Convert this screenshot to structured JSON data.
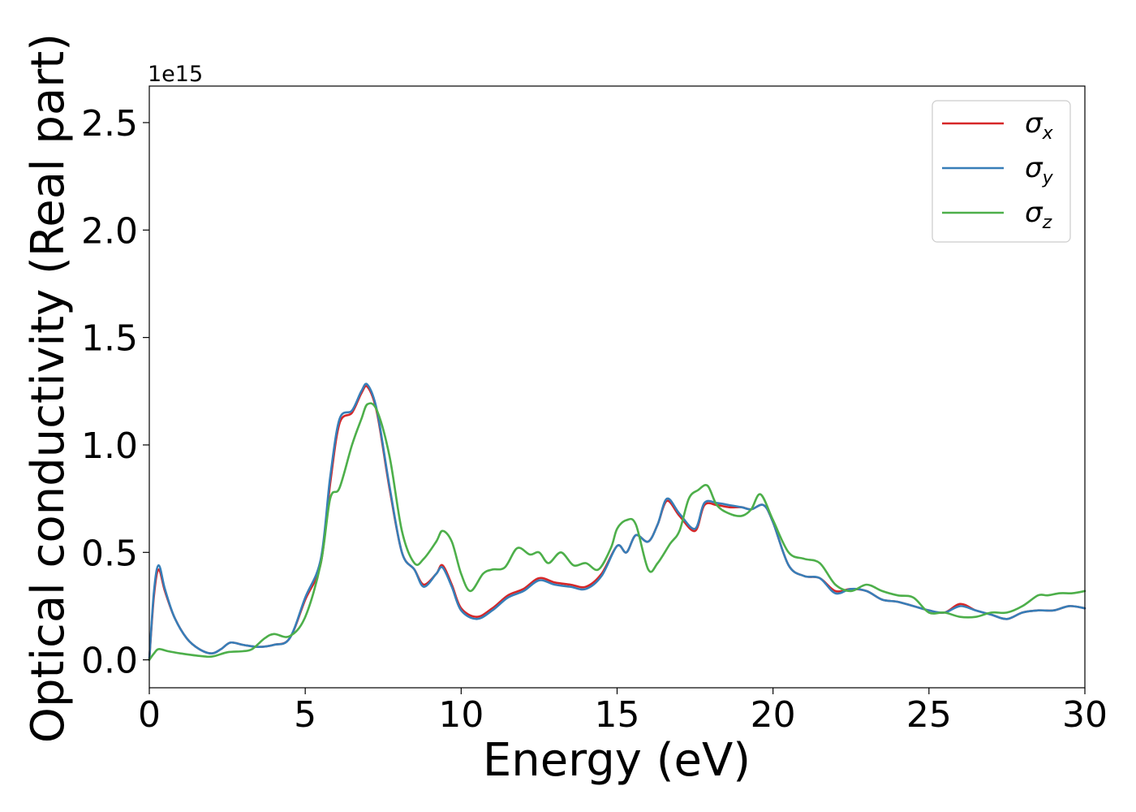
{
  "chart_data": {
    "type": "line",
    "title": "",
    "xlabel": "Energy (eV)",
    "ylabel": "Optical conductivity (Real part)",
    "y_offset_label": "1e15",
    "xlim": [
      0,
      30
    ],
    "ylim": [
      -0.13,
      2.67
    ],
    "x_ticks": [
      0,
      5,
      10,
      15,
      20,
      25,
      30
    ],
    "x_tick_labels": [
      "0",
      "5",
      "10",
      "15",
      "20",
      "25",
      "30"
    ],
    "y_ticks": [
      0.0,
      0.5,
      1.0,
      1.5,
      2.0,
      2.5
    ],
    "y_tick_labels": [
      "0.0",
      "0.5",
      "1.0",
      "1.5",
      "2.0",
      "2.5"
    ],
    "grid": false,
    "legend_position": "top-right",
    "series": [
      {
        "name": "σ",
        "subscript": "x",
        "color": "#d62728",
        "x": [
          0,
          0.15,
          0.3,
          0.5,
          0.8,
          1.2,
          1.6,
          2.0,
          2.3,
          2.6,
          3.0,
          3.5,
          4.0,
          4.5,
          5.0,
          5.5,
          5.8,
          6.1,
          6.5,
          6.8,
          7.0,
          7.3,
          7.7,
          8.1,
          8.5,
          8.8,
          9.2,
          9.4,
          9.7,
          10.0,
          10.5,
          11.0,
          11.5,
          12.0,
          12.5,
          13.0,
          13.5,
          14.0,
          14.5,
          15.0,
          15.3,
          15.6,
          16.0,
          16.3,
          16.6,
          17.0,
          17.5,
          17.8,
          18.2,
          18.6,
          19.0,
          19.3,
          19.7,
          20.0,
          20.5,
          21.0,
          21.5,
          22.0,
          22.5,
          23.0,
          23.5,
          24.0,
          24.5,
          25.0,
          25.5,
          26.0,
          26.5,
          27.0,
          27.5,
          28.0,
          28.5,
          29.0,
          29.5,
          30.0
        ],
        "y": [
          0.0,
          0.3,
          0.42,
          0.32,
          0.2,
          0.1,
          0.05,
          0.03,
          0.05,
          0.08,
          0.07,
          0.06,
          0.07,
          0.1,
          0.28,
          0.45,
          0.82,
          1.1,
          1.15,
          1.24,
          1.27,
          1.15,
          0.8,
          0.5,
          0.42,
          0.35,
          0.4,
          0.44,
          0.35,
          0.24,
          0.2,
          0.24,
          0.3,
          0.33,
          0.38,
          0.36,
          0.35,
          0.34,
          0.4,
          0.53,
          0.5,
          0.58,
          0.55,
          0.63,
          0.74,
          0.67,
          0.6,
          0.72,
          0.72,
          0.71,
          0.71,
          0.7,
          0.72,
          0.64,
          0.44,
          0.39,
          0.38,
          0.32,
          0.33,
          0.32,
          0.28,
          0.27,
          0.25,
          0.23,
          0.22,
          0.26,
          0.23,
          0.21,
          0.19,
          0.22,
          0.23,
          0.23,
          0.25,
          0.24
        ]
      },
      {
        "name": "σ",
        "subscript": "y",
        "color": "#377eb8",
        "x": [
          0,
          0.15,
          0.3,
          0.5,
          0.8,
          1.2,
          1.6,
          2.0,
          2.3,
          2.6,
          3.0,
          3.5,
          4.0,
          4.5,
          5.0,
          5.5,
          5.8,
          6.1,
          6.5,
          6.8,
          7.0,
          7.3,
          7.7,
          8.1,
          8.5,
          8.8,
          9.2,
          9.4,
          9.7,
          10.0,
          10.5,
          11.0,
          11.5,
          12.0,
          12.5,
          13.0,
          13.5,
          14.0,
          14.5,
          15.0,
          15.3,
          15.6,
          16.0,
          16.3,
          16.6,
          17.0,
          17.5,
          17.8,
          18.2,
          18.6,
          19.0,
          19.3,
          19.7,
          20.0,
          20.5,
          21.0,
          21.5,
          22.0,
          22.5,
          23.0,
          23.5,
          24.0,
          24.5,
          25.0,
          25.5,
          26.0,
          26.5,
          27.0,
          27.5,
          28.0,
          28.5,
          29.0,
          29.5,
          30.0
        ],
        "y": [
          0.0,
          0.32,
          0.44,
          0.33,
          0.2,
          0.1,
          0.05,
          0.03,
          0.05,
          0.08,
          0.07,
          0.06,
          0.07,
          0.1,
          0.29,
          0.47,
          0.85,
          1.12,
          1.16,
          1.25,
          1.28,
          1.16,
          0.81,
          0.5,
          0.42,
          0.34,
          0.4,
          0.43,
          0.34,
          0.23,
          0.19,
          0.23,
          0.29,
          0.32,
          0.37,
          0.35,
          0.34,
          0.33,
          0.39,
          0.53,
          0.5,
          0.58,
          0.55,
          0.63,
          0.75,
          0.68,
          0.61,
          0.73,
          0.73,
          0.72,
          0.71,
          0.7,
          0.72,
          0.64,
          0.44,
          0.39,
          0.38,
          0.31,
          0.33,
          0.32,
          0.28,
          0.27,
          0.25,
          0.23,
          0.22,
          0.25,
          0.23,
          0.21,
          0.19,
          0.22,
          0.23,
          0.23,
          0.25,
          0.24
        ]
      },
      {
        "name": "σ",
        "subscript": "z",
        "color": "#4daf4a",
        "x": [
          0,
          0.15,
          0.3,
          0.6,
          1.0,
          1.5,
          2.0,
          2.5,
          3.0,
          3.3,
          3.7,
          4.0,
          4.5,
          5.0,
          5.5,
          5.8,
          6.1,
          6.5,
          6.8,
          7.0,
          7.3,
          7.7,
          8.1,
          8.5,
          8.8,
          9.2,
          9.4,
          9.7,
          10.0,
          10.3,
          10.7,
          11.0,
          11.4,
          11.8,
          12.2,
          12.5,
          12.8,
          13.2,
          13.6,
          14.0,
          14.4,
          14.8,
          15.0,
          15.3,
          15.6,
          16.0,
          16.3,
          16.7,
          17.0,
          17.3,
          17.6,
          17.9,
          18.2,
          18.6,
          19.0,
          19.3,
          19.6,
          20.0,
          20.5,
          21.0,
          21.5,
          22.0,
          22.5,
          23.0,
          23.5,
          24.0,
          24.5,
          25.0,
          25.5,
          26.0,
          26.5,
          27.0,
          27.5,
          28.0,
          28.5,
          28.8,
          29.2,
          29.6,
          30.0
        ],
        "y": [
          0.0,
          0.03,
          0.05,
          0.04,
          0.03,
          0.02,
          0.015,
          0.035,
          0.04,
          0.05,
          0.1,
          0.12,
          0.11,
          0.2,
          0.45,
          0.75,
          0.8,
          1.0,
          1.12,
          1.19,
          1.16,
          0.95,
          0.6,
          0.45,
          0.47,
          0.55,
          0.6,
          0.55,
          0.4,
          0.32,
          0.4,
          0.42,
          0.43,
          0.52,
          0.49,
          0.5,
          0.45,
          0.5,
          0.44,
          0.45,
          0.42,
          0.52,
          0.61,
          0.65,
          0.63,
          0.42,
          0.45,
          0.54,
          0.6,
          0.75,
          0.79,
          0.81,
          0.72,
          0.68,
          0.67,
          0.7,
          0.77,
          0.65,
          0.5,
          0.47,
          0.45,
          0.35,
          0.32,
          0.35,
          0.32,
          0.3,
          0.29,
          0.22,
          0.22,
          0.2,
          0.2,
          0.22,
          0.22,
          0.25,
          0.3,
          0.3,
          0.31,
          0.31,
          0.32
        ]
      }
    ]
  }
}
